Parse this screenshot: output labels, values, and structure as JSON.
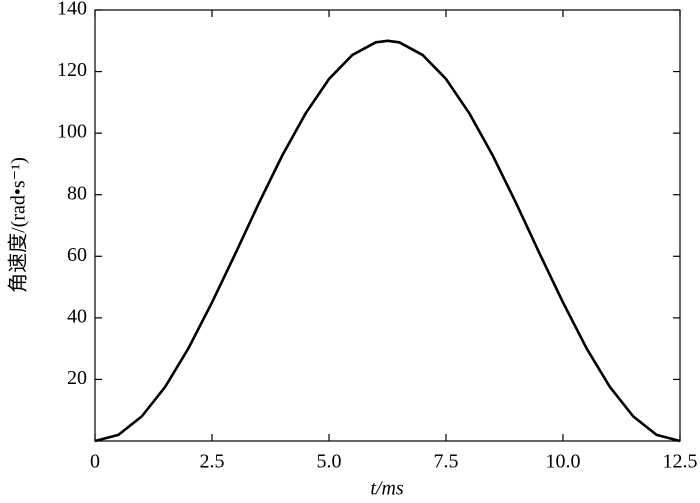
{
  "chart_data": {
    "type": "line",
    "x_label": "t/ms",
    "y_label": "角速度/(rad•s⁻¹)",
    "x": [
      0,
      0.5,
      1,
      1.5,
      2,
      2.5,
      3,
      3.5,
      4,
      4.5,
      5,
      5.5,
      6,
      6.25,
      6.5,
      7,
      7.5,
      8,
      8.5,
      9,
      9.5,
      10,
      10.5,
      11,
      11.5,
      12,
      12.5
    ],
    "series": [
      {
        "color": "#000000",
        "values": [
          0,
          2.0,
          8.0,
          17.6,
          30.2,
          45.0,
          60.9,
          77.2,
          92.7,
          106.4,
          117.6,
          125.4,
          129.5,
          130,
          129.5,
          125.4,
          117.6,
          106.4,
          92.7,
          77.2,
          60.9,
          45.0,
          30.2,
          17.6,
          8.0,
          2.0,
          0
        ]
      }
    ],
    "xlim": [
      0,
      12.5
    ],
    "ylim": [
      0,
      140
    ],
    "xticks": [
      0,
      2.5,
      {
        "value": 5,
        "label": "5.0"
      },
      7.5,
      {
        "value": 10,
        "label": "10.0"
      },
      12.5
    ],
    "yticks": [
      20,
      40,
      60,
      80,
      100,
      120,
      140
    ]
  }
}
